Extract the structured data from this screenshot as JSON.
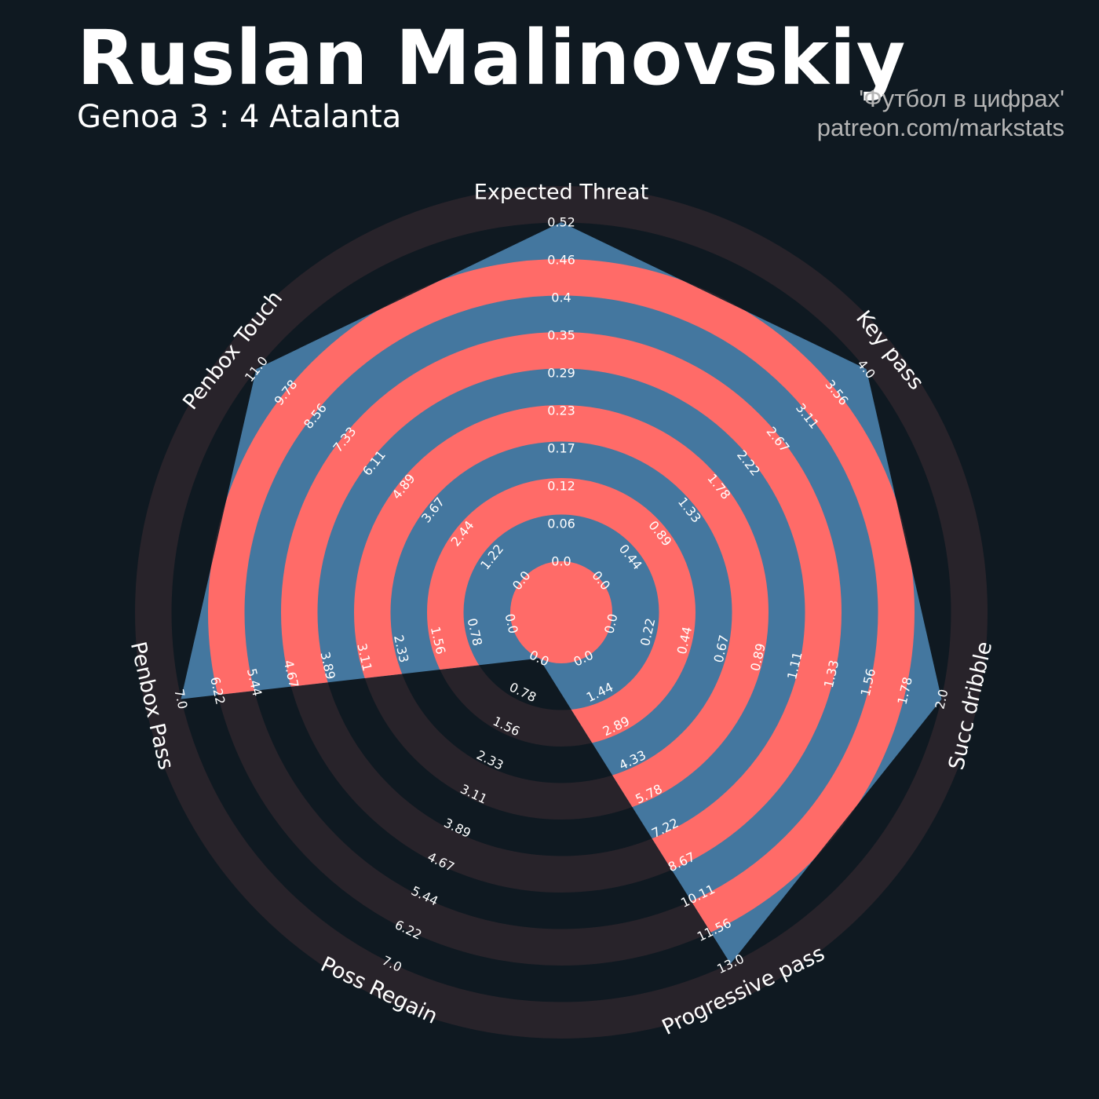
{
  "header": {
    "title": "Ruslan Malinovskiy",
    "subtitle": "Genoa 3 : 4 Atalanta",
    "credit_line1": "'Футбол в цифрах'",
    "credit_line2": "patreon.com/markstats"
  },
  "colors": {
    "background": "#0f1921",
    "outer_ring": "#28232a",
    "radar_fill": "#44779f",
    "radar_ring": "#ff6b68"
  },
  "chart_data": {
    "type": "radar",
    "title": "Ruslan Malinovskiy",
    "subtitle": "Genoa 3 : 4 Atalanta",
    "parameters": [
      {
        "name": "Expected Threat",
        "value": 0.52,
        "range": [
          0,
          0.52
        ],
        "ticks": [
          "0.0",
          "0.06",
          "0.12",
          "0.17",
          "0.23",
          "0.29",
          "0.35",
          "0.4",
          "0.46",
          "0.52"
        ]
      },
      {
        "name": "Key pass",
        "value": 4.0,
        "range": [
          0,
          4.0
        ],
        "ticks": [
          "0.0",
          "0.44",
          "0.89",
          "1.33",
          "1.78",
          "2.22",
          "2.67",
          "3.11",
          "3.56",
          "4.0"
        ]
      },
      {
        "name": "Succ dribble",
        "value": 2.0,
        "range": [
          0,
          2.0
        ],
        "ticks": [
          "0.0",
          "0.22",
          "0.44",
          "0.67",
          "0.89",
          "1.11",
          "1.33",
          "1.56",
          "1.78",
          "2.0"
        ]
      },
      {
        "name": "Progressive pass",
        "value": 13.0,
        "range": [
          0,
          13.0
        ],
        "ticks": [
          "0.0",
          "1.44",
          "2.89",
          "4.33",
          "5.78",
          "7.22",
          "8.67",
          "10.11",
          "11.56",
          "13.0"
        ]
      },
      {
        "name": "Poss Regain",
        "value": 0.0,
        "range": [
          0,
          7.0
        ],
        "ticks": [
          "0.0",
          "0.78",
          "1.56",
          "2.33",
          "3.11",
          "3.89",
          "4.67",
          "5.44",
          "6.22",
          "7.0"
        ]
      },
      {
        "name": "Penbox Pass",
        "value": 7.0,
        "range": [
          0,
          7.0
        ],
        "ticks": [
          "0.0",
          "0.78",
          "1.56",
          "2.33",
          "3.11",
          "3.89",
          "4.67",
          "5.44",
          "6.22",
          "7.0"
        ]
      },
      {
        "name": "Penbox Touch",
        "value": 11.0,
        "range": [
          0,
          11.0
        ],
        "ticks": [
          "0.0",
          "1.22",
          "2.44",
          "3.67",
          "4.89",
          "6.11",
          "7.33",
          "8.56",
          "9.78",
          "11.0"
        ]
      }
    ]
  }
}
